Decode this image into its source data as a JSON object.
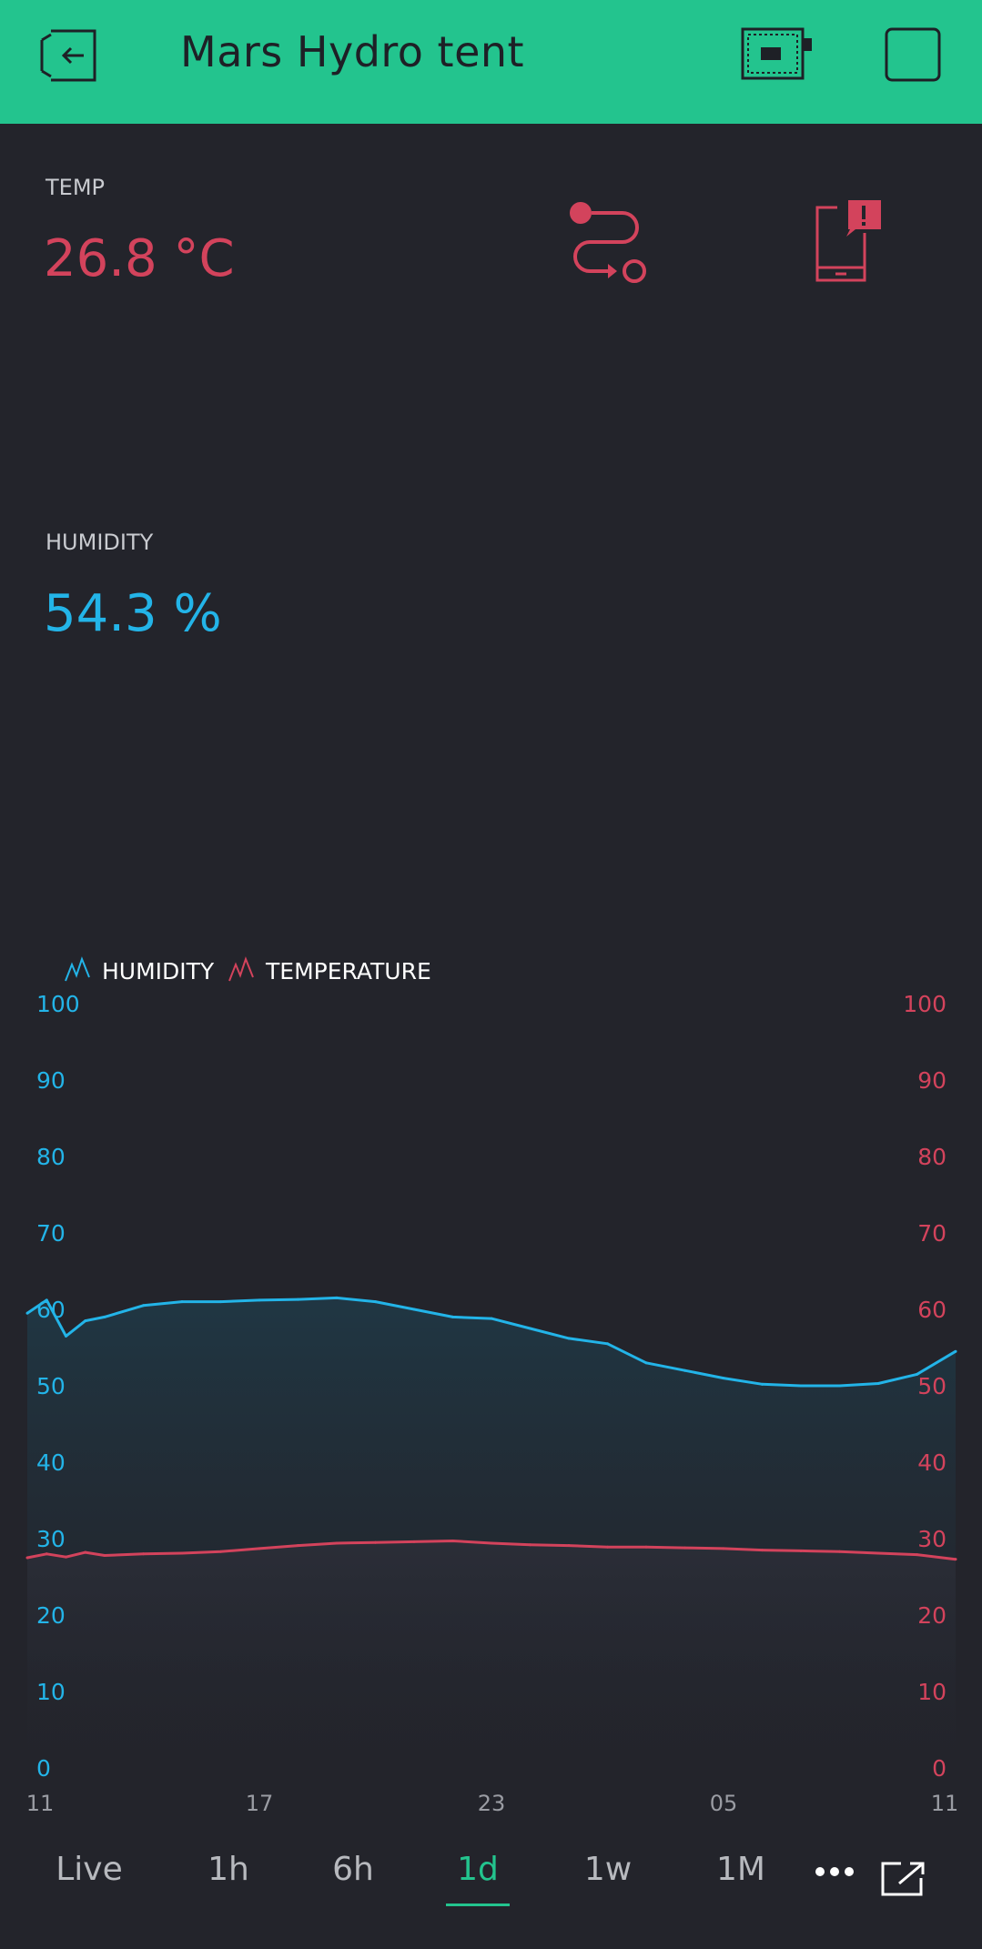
{
  "header": {
    "title": "Mars Hydro tent",
    "back_icon": "exit-door-icon",
    "device_icon": "device-board-icon",
    "square_icon": "square-icon",
    "bg_color": "#23c48e"
  },
  "temp": {
    "label": "TEMP",
    "value": "26.8 °C",
    "color": "#d3435c"
  },
  "humidity": {
    "label": "HUMIDITY",
    "value": "54.3 %",
    "color": "#23b4e8"
  },
  "widgets": {
    "route_icon": "route-icon",
    "notification_icon": "phone-notification-icon"
  },
  "tabs": [
    {
      "label": "Live"
    },
    {
      "label": "1h"
    },
    {
      "label": "6h"
    },
    {
      "label": "1d",
      "active": true
    },
    {
      "label": "1w"
    },
    {
      "label": "1M"
    }
  ],
  "tabbar": {
    "more_icon": "more-dots-icon",
    "export_icon": "export-icon"
  },
  "chart_data": {
    "type": "line",
    "legend": [
      "HUMIDITY",
      "TEMPERATURE"
    ],
    "legend_placement": "top-left",
    "x_ticks": [
      "11",
      "17",
      "23",
      "05",
      "11"
    ],
    "y_left_ticks": [
      "0",
      "10",
      "20",
      "30",
      "40",
      "50",
      "60",
      "70",
      "80",
      "90",
      "100"
    ],
    "y_right_ticks": [
      "0",
      "10",
      "20",
      "30",
      "40",
      "50",
      "60",
      "70",
      "80",
      "90",
      "100"
    ],
    "ylim": [
      0,
      100
    ],
    "grid": false,
    "x": [
      0,
      0.5,
      1,
      1.5,
      2,
      3,
      4,
      5,
      6,
      7,
      8,
      9,
      10,
      11,
      12,
      13,
      14,
      15,
      16,
      17,
      18,
      19,
      20,
      21,
      22,
      23,
      24
    ],
    "series": [
      {
        "name": "HUMIDITY",
        "color": "#23b4e8",
        "values": [
          59.5,
          61.2,
          56.5,
          58.5,
          59,
          60.5,
          61,
          61,
          61.2,
          61.3,
          61.5,
          61,
          60,
          59,
          58.8,
          57.5,
          56.2,
          55.5,
          53,
          52,
          51,
          50.2,
          50,
          50,
          50.3,
          51.5,
          54.5
        ]
      },
      {
        "name": "TEMPERATURE",
        "color": "#d3435c",
        "values": [
          27.5,
          28,
          27.6,
          28.2,
          27.8,
          28,
          28.1,
          28.3,
          28.7,
          29.1,
          29.4,
          29.5,
          29.6,
          29.7,
          29.4,
          29.2,
          29.1,
          28.9,
          28.9,
          28.8,
          28.7,
          28.5,
          28.4,
          28.3,
          28.1,
          27.9,
          27.3
        ]
      }
    ]
  }
}
